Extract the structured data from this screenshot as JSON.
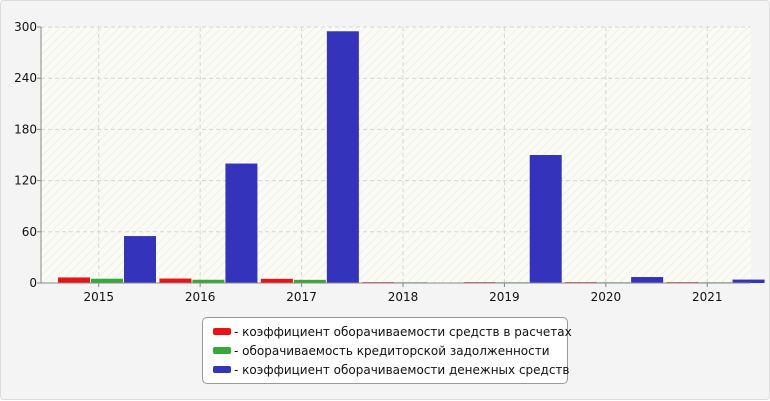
{
  "chart_data": {
    "type": "bar",
    "categories": [
      "2015",
      "2016",
      "2017",
      "2018",
      "2019",
      "2020",
      "2021"
    ],
    "series": [
      {
        "name": "- коэффициент оборачиваемости средств в расчетах",
        "color": "#ee1111",
        "values": [
          6.5,
          5.2,
          4.9,
          1.0,
          1.0,
          1.0,
          1.0
        ]
      },
      {
        "name": "- оборачиваемость кредиторской задолженности",
        "color": "#33aa33",
        "values": [
          5.0,
          3.8,
          3.7,
          0.8,
          0.8,
          0.8,
          0.8
        ]
      },
      {
        "name": "- коэффициент оборачиваемости денежных средств",
        "color": "#3333bb",
        "values": [
          55,
          140,
          295,
          0,
          150,
          7,
          4
        ]
      }
    ],
    "yticks": [
      "0",
      "60",
      "120",
      "180",
      "240",
      "300"
    ],
    "ylim": [
      0,
      300
    ],
    "grid": true,
    "legend_position": "bottom"
  }
}
